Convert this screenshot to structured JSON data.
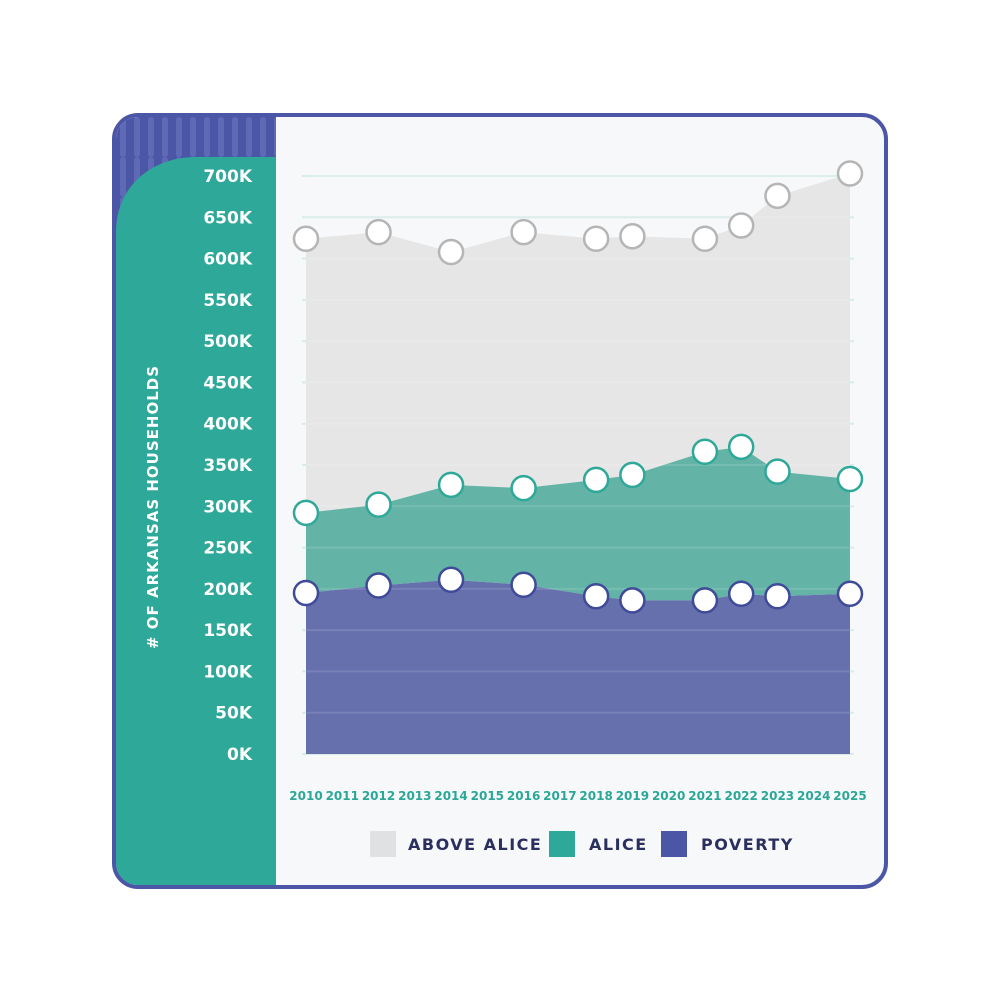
{
  "colors": {
    "frame": "#4b56a6",
    "sidebar": "#2ea898",
    "above_alice": "#e6e6e6",
    "alice": "#63b3a6",
    "poverty": "#6670ad",
    "gridline": "#d6ece8",
    "x_tick": "#2aa797",
    "legend_text": "#2b2f5e"
  },
  "chart_data": {
    "type": "area",
    "stacked": true,
    "ylabel": "# OF ARKANSAS HOUSEHOLDS",
    "ylim": [
      0,
      700000
    ],
    "y_ticks": [
      0,
      50000,
      100000,
      150000,
      200000,
      250000,
      300000,
      350000,
      400000,
      450000,
      500000,
      550000,
      600000,
      650000,
      700000
    ],
    "y_tick_labels": [
      "0K",
      "50K",
      "100K",
      "150K",
      "200K",
      "250K",
      "300K",
      "350K",
      "400K",
      "450K",
      "500K",
      "550K",
      "600K",
      "650K",
      "700K"
    ],
    "x_categories": [
      "2010",
      "2011",
      "2012",
      "2013",
      "2014",
      "2015",
      "2016",
      "2017",
      "2018",
      "2019",
      "2020",
      "2021",
      "2022",
      "2023",
      "2024",
      "2025"
    ],
    "x": [
      2010,
      2012,
      2014,
      2016,
      2018,
      2019,
      2021,
      2022,
      2023,
      2025
    ],
    "series": [
      {
        "name": "POVERTY",
        "key": "poverty",
        "cumulative": [
          195000,
          204000,
          211000,
          205000,
          191000,
          186000,
          186000,
          194000,
          191000,
          194000
        ]
      },
      {
        "name": "ALICE",
        "key": "alice",
        "cumulative": [
          292000,
          302000,
          326000,
          322000,
          332000,
          338000,
          366000,
          372000,
          342000,
          333000
        ]
      },
      {
        "name": "ABOVE ALICE",
        "key": "above_alice",
        "cumulative": [
          624000,
          632000,
          608000,
          632000,
          624000,
          627000,
          624000,
          640000,
          676000,
          703000
        ]
      }
    ],
    "legend": {
      "position": "bottom",
      "items": [
        {
          "label": "ABOVE ALICE",
          "key": "above_alice"
        },
        {
          "label": "ALICE",
          "key": "alice"
        },
        {
          "label": "POVERTY",
          "key": "poverty"
        }
      ]
    },
    "grid": true
  }
}
